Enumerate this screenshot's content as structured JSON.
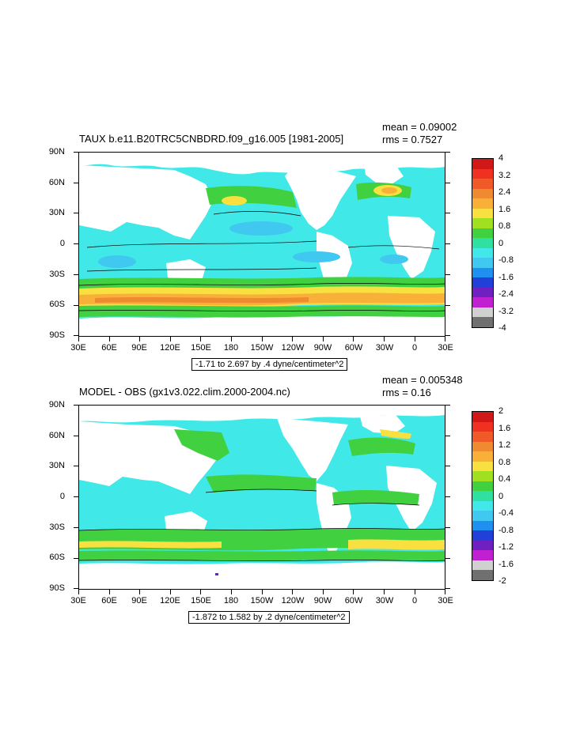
{
  "panels": [
    {
      "title": "TAUX b.e11.B20TRC5CNBDRD.f09_g16.005 [1981-2005]",
      "mean": "mean = 0.09002",
      "rms": "rms = 0.7527",
      "range": "-1.71 to 2.697 by .4 dyne/centimeter^2",
      "colorbar_labels": [
        "4",
        "3.2",
        "2.4",
        "1.6",
        "0.8",
        "0",
        "-0.8",
        "-1.6",
        "-2.4",
        "-3.2",
        "-4"
      ],
      "colorbar_colors": [
        "#d01818",
        "#f03020",
        "#f05a28",
        "#f08a30",
        "#f8b038",
        "#f8e040",
        "#a0e020",
        "#40d040",
        "#30e0a0",
        "#40e8e8",
        "#40c8f0",
        "#2090f0",
        "#2040d8",
        "#7020c0",
        "#c020d0",
        "#d0d0d0",
        "#707070"
      ]
    },
    {
      "title": "MODEL - OBS (gx1v3.022.clim.2000-2004.nc)",
      "mean": "mean = 0.005348",
      "rms": "rms = 0.16",
      "range": "-1.872 to 1.582 by .2 dyne/centimeter^2",
      "colorbar_labels": [
        "2",
        "1.6",
        "1.2",
        "0.8",
        "0.4",
        "0",
        "-0.4",
        "-0.8",
        "-1.2",
        "-1.6",
        "-2"
      ],
      "colorbar_colors": [
        "#d01818",
        "#f03020",
        "#f05a28",
        "#f08a30",
        "#f8b038",
        "#f8e040",
        "#a0e020",
        "#40d040",
        "#30e0a0",
        "#40e8e8",
        "#40c8f0",
        "#2090f0",
        "#2040d8",
        "#7020c0",
        "#c020d0",
        "#d0d0d0",
        "#707070"
      ]
    }
  ],
  "lat_labels": [
    "90N",
    "60N",
    "30N",
    "0",
    "30S",
    "60S",
    "90S"
  ],
  "lon_labels": [
    "30E",
    "60E",
    "90E",
    "120E",
    "150E",
    "180",
    "150W",
    "120W",
    "90W",
    "60W",
    "30W",
    "0",
    "30E"
  ],
  "map_colors": {
    "land": "#ffffff",
    "ocean_base": "#40e8e8",
    "green": "#40d040",
    "yellow": "#f8e040",
    "orange": "#f8b038",
    "darkorange": "#f08a30",
    "lightblue": "#40c8f0"
  }
}
